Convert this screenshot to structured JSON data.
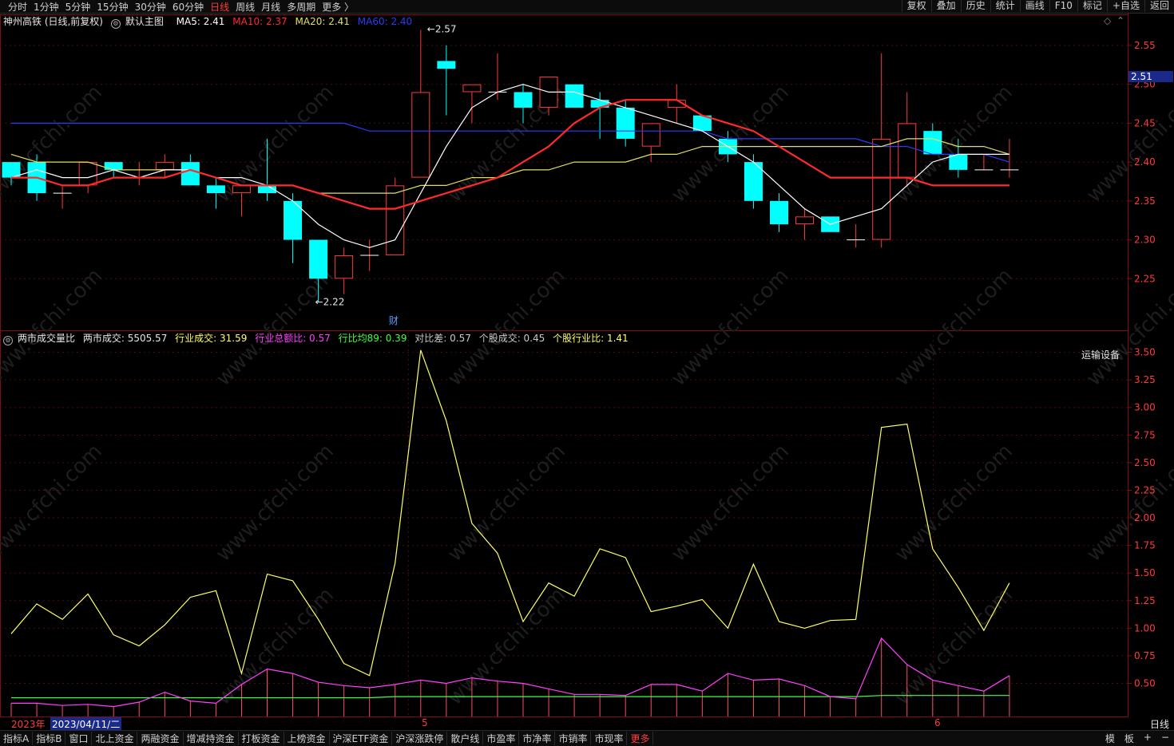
{
  "topbar": {
    "periods": [
      "分时",
      "1分钟",
      "5分钟",
      "15分钟",
      "30分钟",
      "60分钟",
      "日线",
      "周线",
      "月线",
      "多周期",
      "更多 〉"
    ],
    "active_index": 6,
    "tools": [
      "复权",
      "叠加",
      "历史",
      "统计",
      "画线",
      "F10",
      "标记",
      "+自选",
      "返回"
    ]
  },
  "main_info": {
    "stock": "神州高铁 (日线,前复权)",
    "template": "默认主图",
    "ma5": "MA5: 2.41",
    "ma10": "MA10: 2.37",
    "ma20": "MA20: 2.41",
    "ma60": "MA60: 2.40"
  },
  "sub_info": {
    "name": "两市成交量比",
    "mkt": "两市成交: 5505.57",
    "ind": "行业成交: 31.59",
    "ratio": "行业总额比: 0.57",
    "avg": "行比均89: 0.39",
    "diff": "对比差: 0.57",
    "stk": "个股成交: 0.45",
    "stkind": "个股行业比: 1.41",
    "sector": "运输设备"
  },
  "markers": {
    "high": "2.57",
    "low": "2.22",
    "cai": "财"
  },
  "price_axis": {
    "ticks": [
      "2.55",
      "2.50",
      "2.45",
      "2.40",
      "2.35",
      "2.30",
      "2.25"
    ],
    "current": "2.51"
  },
  "sub_axis": {
    "ticks": [
      "3.50",
      "3.25",
      "3.00",
      "2.75",
      "2.50",
      "2.25",
      "2.00",
      "1.75",
      "1.50",
      "1.25",
      "1.00",
      "0.75",
      "0.50"
    ]
  },
  "date_bar": {
    "year": "2023年",
    "cursor": "2023/04/11/二",
    "m5": "5",
    "m6": "6",
    "period": "日线"
  },
  "bottombar": {
    "tabs": [
      "指标A",
      "指标B",
      "窗口",
      "北上资金",
      "两融资金",
      "增减持资金",
      "打板资金",
      "上榜资金",
      "沪深ETF资金",
      "沪深涨跌停",
      "散户线",
      "市盈率",
      "市净率",
      "市销率",
      "市现率",
      "更多"
    ],
    "right": [
      "模",
      "板",
      "+",
      "−"
    ]
  },
  "colors": {
    "up": "#ff3a3a",
    "down": "#00ffff",
    "ma5": "#ffffff",
    "ma10": "#ff2a2a",
    "ma20": "#e0e060",
    "ma60": "#2a3aff",
    "yellow": "#ffff66",
    "magenta": "#ff40ff",
    "green": "#40ff40"
  },
  "chart_data": {
    "type": "candlestick",
    "candles": [
      {
        "o": 2.4,
        "h": 2.4,
        "l": 2.37,
        "c": 2.38
      },
      {
        "o": 2.4,
        "h": 2.41,
        "l": 2.35,
        "c": 2.36
      },
      {
        "o": 2.36,
        "h": 2.37,
        "l": 2.34,
        "c": 2.36
      },
      {
        "o": 2.37,
        "h": 2.4,
        "l": 2.36,
        "c": 2.4
      },
      {
        "o": 2.4,
        "h": 2.4,
        "l": 2.38,
        "c": 2.39
      },
      {
        "o": 2.38,
        "h": 2.4,
        "l": 2.37,
        "c": 2.38
      },
      {
        "o": 2.39,
        "h": 2.41,
        "l": 2.38,
        "c": 2.4
      },
      {
        "o": 2.4,
        "h": 2.41,
        "l": 2.37,
        "c": 2.37
      },
      {
        "o": 2.37,
        "h": 2.38,
        "l": 2.34,
        "c": 2.36
      },
      {
        "o": 2.36,
        "h": 2.37,
        "l": 2.33,
        "c": 2.37
      },
      {
        "o": 2.37,
        "h": 2.43,
        "l": 2.35,
        "c": 2.36
      },
      {
        "o": 2.35,
        "h": 2.36,
        "l": 2.27,
        "c": 2.3
      },
      {
        "o": 2.3,
        "h": 2.3,
        "l": 2.22,
        "c": 2.25
      },
      {
        "o": 2.25,
        "h": 2.29,
        "l": 2.23,
        "c": 2.28
      },
      {
        "o": 2.28,
        "h": 2.3,
        "l": 2.26,
        "c": 2.28
      },
      {
        "o": 2.28,
        "h": 2.38,
        "l": 2.28,
        "c": 2.37
      },
      {
        "o": 2.38,
        "h": 2.57,
        "l": 2.38,
        "c": 2.49
      },
      {
        "o": 2.53,
        "h": 2.55,
        "l": 2.46,
        "c": 2.52
      },
      {
        "o": 2.49,
        "h": 2.5,
        "l": 2.45,
        "c": 2.5
      },
      {
        "o": 2.49,
        "h": 2.54,
        "l": 2.48,
        "c": 2.49
      },
      {
        "o": 2.49,
        "h": 2.5,
        "l": 2.45,
        "c": 2.47
      },
      {
        "o": 2.47,
        "h": 2.51,
        "l": 2.46,
        "c": 2.51
      },
      {
        "o": 2.5,
        "h": 2.5,
        "l": 2.47,
        "c": 2.47
      },
      {
        "o": 2.48,
        "h": 2.49,
        "l": 2.43,
        "c": 2.47
      },
      {
        "o": 2.47,
        "h": 2.48,
        "l": 2.42,
        "c": 2.43
      },
      {
        "o": 2.42,
        "h": 2.45,
        "l": 2.4,
        "c": 2.45
      },
      {
        "o": 2.47,
        "h": 2.5,
        "l": 2.45,
        "c": 2.48
      },
      {
        "o": 2.46,
        "h": 2.46,
        "l": 2.44,
        "c": 2.44
      },
      {
        "o": 2.43,
        "h": 2.44,
        "l": 2.4,
        "c": 2.41
      },
      {
        "o": 2.4,
        "h": 2.41,
        "l": 2.34,
        "c": 2.35
      },
      {
        "o": 2.35,
        "h": 2.36,
        "l": 2.31,
        "c": 2.32
      },
      {
        "o": 2.32,
        "h": 2.34,
        "l": 2.3,
        "c": 2.33
      },
      {
        "o": 2.33,
        "h": 2.33,
        "l": 2.31,
        "c": 2.31
      },
      {
        "o": 2.3,
        "h": 2.32,
        "l": 2.29,
        "c": 2.3
      },
      {
        "o": 2.3,
        "h": 2.54,
        "l": 2.29,
        "c": 2.43
      },
      {
        "o": 2.38,
        "h": 2.49,
        "l": 2.37,
        "c": 2.45
      },
      {
        "o": 2.44,
        "h": 2.45,
        "l": 2.41,
        "c": 2.41
      },
      {
        "o": 2.41,
        "h": 2.43,
        "l": 2.38,
        "c": 2.39
      },
      {
        "o": 2.39,
        "h": 2.41,
        "l": 2.39,
        "c": 2.39
      },
      {
        "o": 2.39,
        "h": 2.43,
        "l": 2.38,
        "c": 2.39
      }
    ],
    "ma5": [
      2.38,
      2.39,
      2.38,
      2.38,
      2.39,
      2.38,
      2.39,
      2.39,
      2.38,
      2.38,
      2.37,
      2.35,
      2.32,
      2.3,
      2.29,
      2.3,
      2.36,
      2.42,
      2.47,
      2.49,
      2.5,
      2.49,
      2.49,
      2.48,
      2.47,
      2.46,
      2.45,
      2.44,
      2.42,
      2.4,
      2.37,
      2.34,
      2.32,
      2.33,
      2.34,
      2.37,
      2.4,
      2.41,
      2.41,
      2.41
    ],
    "ma10": [
      2.38,
      2.38,
      2.37,
      2.37,
      2.38,
      2.38,
      2.38,
      2.39,
      2.38,
      2.37,
      2.37,
      2.37,
      2.36,
      2.35,
      2.34,
      2.34,
      2.35,
      2.36,
      2.37,
      2.38,
      2.4,
      2.42,
      2.45,
      2.47,
      2.48,
      2.48,
      2.48,
      2.46,
      2.45,
      2.44,
      2.42,
      2.4,
      2.38,
      2.38,
      2.38,
      2.38,
      2.37,
      2.37,
      2.37,
      2.37
    ],
    "ma20": [
      2.41,
      2.4,
      2.4,
      2.4,
      2.39,
      2.39,
      2.39,
      2.39,
      2.38,
      2.37,
      2.37,
      2.37,
      2.36,
      2.36,
      2.36,
      2.36,
      2.37,
      2.37,
      2.38,
      2.38,
      2.39,
      2.39,
      2.4,
      2.4,
      2.4,
      2.41,
      2.41,
      2.42,
      2.42,
      2.42,
      2.42,
      2.42,
      2.42,
      2.42,
      2.42,
      2.43,
      2.43,
      2.42,
      2.42,
      2.41
    ],
    "ma60": [
      2.45,
      2.45,
      2.45,
      2.45,
      2.45,
      2.45,
      2.45,
      2.45,
      2.45,
      2.45,
      2.45,
      2.45,
      2.45,
      2.45,
      2.44,
      2.44,
      2.44,
      2.44,
      2.44,
      2.44,
      2.44,
      2.44,
      2.44,
      2.44,
      2.44,
      2.44,
      2.44,
      2.44,
      2.43,
      2.43,
      2.43,
      2.43,
      2.43,
      2.43,
      2.42,
      2.42,
      2.41,
      2.41,
      2.41,
      2.4
    ],
    "sub_yellow": [
      0.95,
      1.22,
      1.08,
      1.31,
      0.94,
      0.84,
      1.03,
      1.28,
      1.34,
      0.59,
      1.49,
      1.43,
      1.08,
      0.68,
      0.57,
      1.59,
      3.52,
      2.88,
      1.95,
      1.68,
      1.06,
      1.41,
      1.29,
      1.72,
      1.64,
      1.15,
      1.2,
      1.26,
      1.0,
      1.58,
      1.06,
      1.0,
      1.07,
      1.08,
      2.82,
      2.85,
      1.72,
      1.37,
      0.98,
      1.41
    ],
    "sub_magenta": [
      0.32,
      0.32,
      0.3,
      0.31,
      0.29,
      0.33,
      0.42,
      0.34,
      0.32,
      0.49,
      0.63,
      0.59,
      0.51,
      0.48,
      0.46,
      0.49,
      0.53,
      0.5,
      0.55,
      0.52,
      0.5,
      0.45,
      0.4,
      0.4,
      0.39,
      0.49,
      0.49,
      0.43,
      0.59,
      0.53,
      0.54,
      0.48,
      0.38,
      0.36,
      0.91,
      0.67,
      0.53,
      0.48,
      0.43,
      0.57
    ],
    "sub_green": [
      0.37,
      0.37,
      0.37,
      0.37,
      0.37,
      0.37,
      0.37,
      0.37,
      0.37,
      0.37,
      0.37,
      0.37,
      0.37,
      0.37,
      0.37,
      0.38,
      0.38,
      0.38,
      0.38,
      0.38,
      0.38,
      0.38,
      0.38,
      0.38,
      0.38,
      0.38,
      0.38,
      0.38,
      0.38,
      0.38,
      0.38,
      0.38,
      0.38,
      0.38,
      0.39,
      0.39,
      0.39,
      0.39,
      0.39,
      0.39
    ],
    "price_ylim": [
      2.2,
      2.59
    ],
    "sub_ylim": [
      0.2,
      3.62
    ]
  }
}
